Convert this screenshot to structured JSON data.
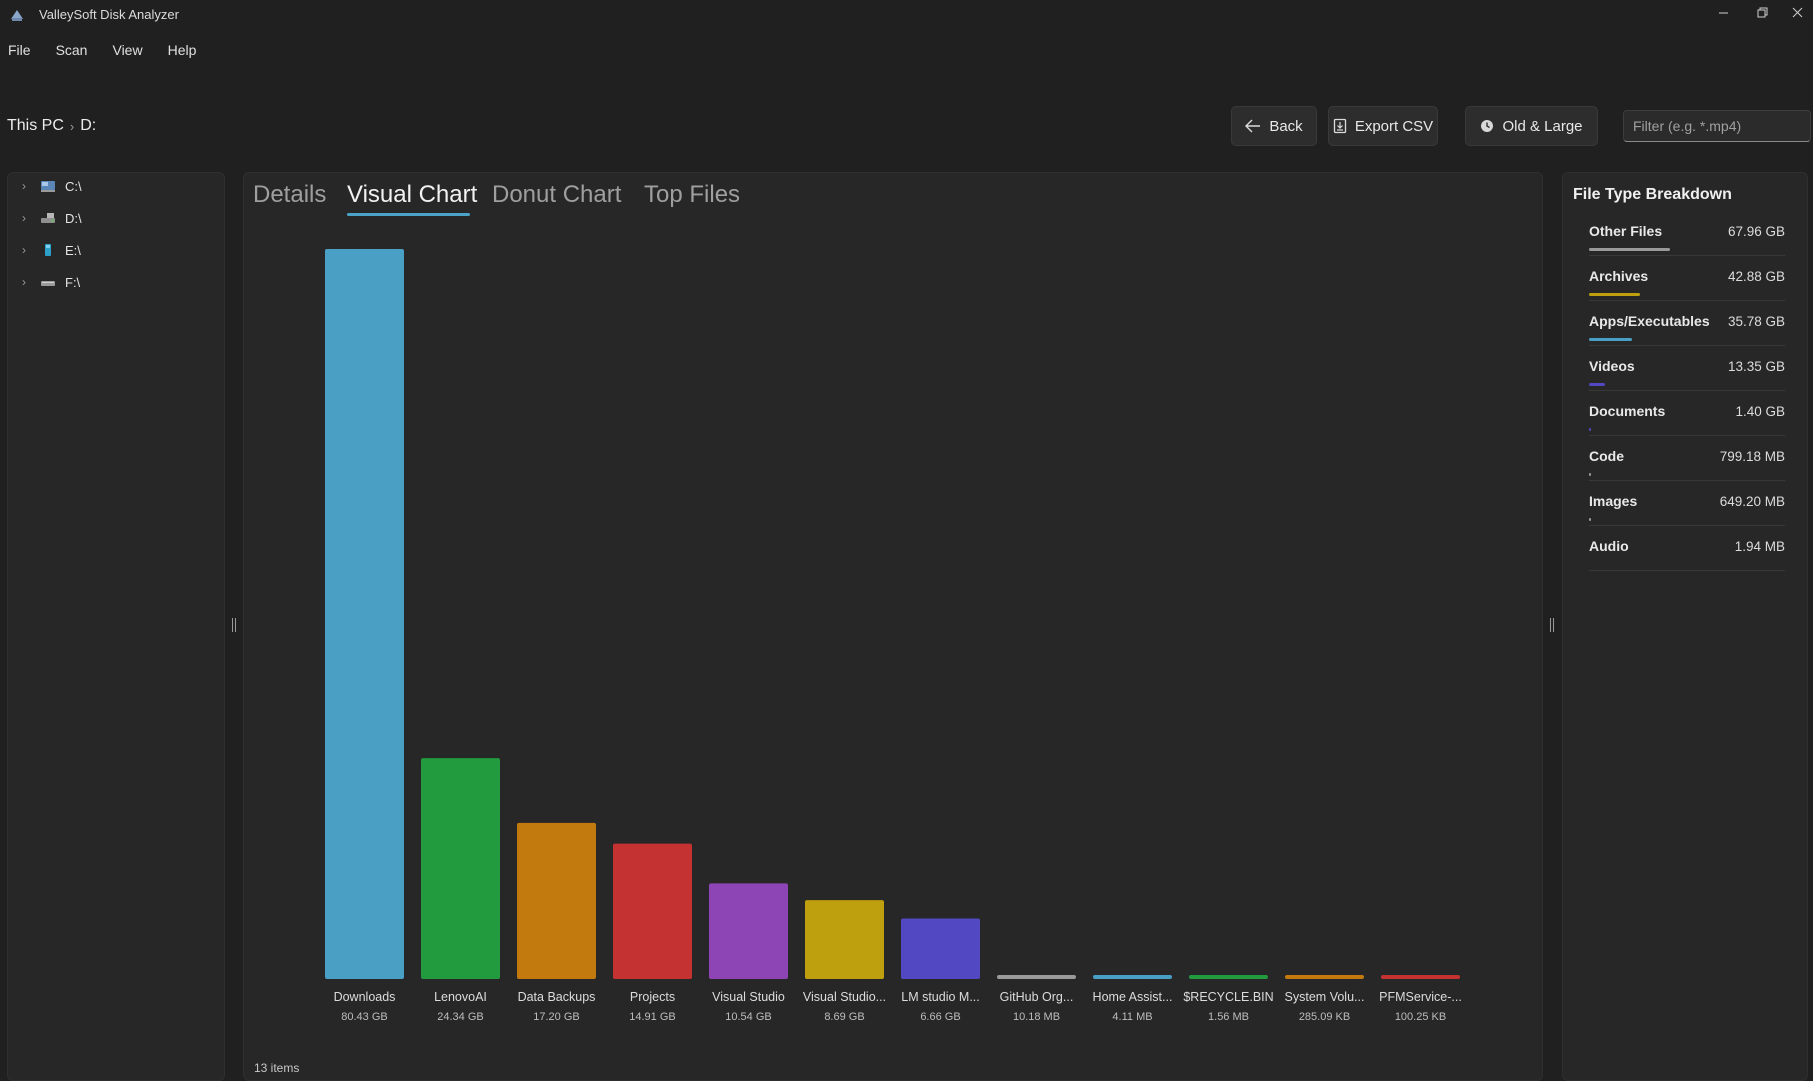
{
  "window": {
    "title": "ValleySoft Disk Analyzer"
  },
  "menu": {
    "items": [
      "File",
      "Scan",
      "View",
      "Help"
    ]
  },
  "breadcrumb": {
    "root": "This PC",
    "current": "D:"
  },
  "toolbar": {
    "back_label": "Back",
    "export_label": "Export CSV",
    "old_large_label": "Old & Large",
    "filter_placeholder": "Filter (e.g. *.mp4)"
  },
  "tree": {
    "drives": [
      "C:\\",
      "D:\\",
      "E:\\",
      "F:\\"
    ]
  },
  "tabs": {
    "items": [
      "Details",
      "Visual Chart",
      "Donut Chart",
      "Top Files"
    ],
    "active": "Visual Chart"
  },
  "chart_data": {
    "type": "bar",
    "categories": [
      "Downloads",
      "LenovoAI",
      "Data Backups",
      "Projects",
      "Visual Studio",
      "Visual Studio...",
      "LM studio M...",
      "GitHub Org...",
      "Home Assist...",
      "$RECYCLE.BIN",
      "System Volu...",
      "PFMService-..."
    ],
    "size_labels": [
      "80.43 GB",
      "24.34 GB",
      "17.20 GB",
      "14.91 GB",
      "10.54 GB",
      "8.69 GB",
      "6.66 GB",
      "10.18 MB",
      "4.11 MB",
      "1.56 MB",
      "285.09 KB",
      "100.25 KB"
    ],
    "values_gb": [
      80.43,
      24.34,
      17.2,
      14.91,
      10.54,
      8.69,
      6.66,
      0.00994,
      0.00401,
      0.00152,
      0.000272,
      9.56e-05
    ],
    "colors": [
      "#4a9fc4",
      "#229a3e",
      "#c27a0e",
      "#c43231",
      "#8d44b5",
      "#bea00e",
      "#5148c2",
      "#9a9a9a",
      "#4a9fc4",
      "#229a3e",
      "#c27a0e",
      "#c43231"
    ]
  },
  "status": {
    "items_text": "13 items"
  },
  "file_types": {
    "title": "File Type Breakdown",
    "rows": [
      {
        "name": "Other Files",
        "value": "67.96 GB",
        "fraction": 0.415,
        "color": "#9a9a9a"
      },
      {
        "name": "Archives",
        "value": "42.88 GB",
        "fraction": 0.262,
        "color": "#bea00e"
      },
      {
        "name": "Apps/Executables",
        "value": "35.78 GB",
        "fraction": 0.218,
        "color": "#4a9fc4"
      },
      {
        "name": "Videos",
        "value": "13.35 GB",
        "fraction": 0.081,
        "color": "#5148c2"
      },
      {
        "name": "Documents",
        "value": "1.40 GB",
        "fraction": 0.009,
        "color": "#5148c2"
      },
      {
        "name": "Code",
        "value": "799.18 MB",
        "fraction": 0.005,
        "color": "#9a9a9a"
      },
      {
        "name": "Images",
        "value": "649.20 MB",
        "fraction": 0.004,
        "color": "#9a9a9a"
      },
      {
        "name": "Audio",
        "value": "1.94 MB",
        "fraction": 0.0,
        "color": "#9a9a9a"
      }
    ]
  }
}
